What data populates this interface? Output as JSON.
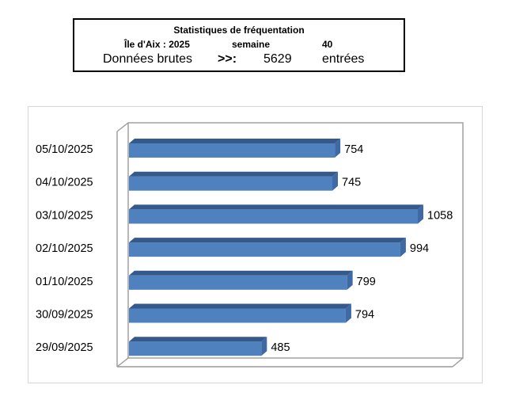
{
  "header": {
    "title": "Statistiques de  fréquentation",
    "location_label": "Île d'Aix :  2025",
    "week_label": "semaine",
    "week_number": "40",
    "data_label": "Données brutes",
    "arrow_label": ">>:",
    "total_entries": "5629",
    "unit_label": "entrées"
  },
  "chart_data": {
    "type": "bar",
    "orientation": "horizontal",
    "style": "3d",
    "title": "",
    "xlabel": "",
    "ylabel": "",
    "categories": [
      "05/10/2025",
      "04/10/2025",
      "03/10/2025",
      "02/10/2025",
      "01/10/2025",
      "30/09/2025",
      "29/09/2025"
    ],
    "values": [
      754,
      745,
      1058,
      994,
      799,
      794,
      485
    ],
    "xlim": [
      0,
      1200
    ],
    "grid": false,
    "legend": false,
    "data_labels": true,
    "colors": {
      "bar_front": "#4e81bd",
      "bar_top": "#36598c",
      "bar_side": "#3e69a4",
      "frame_line": "#9a9a9a",
      "wall_fill": "#ffffff",
      "label_text": "#000000"
    }
  }
}
